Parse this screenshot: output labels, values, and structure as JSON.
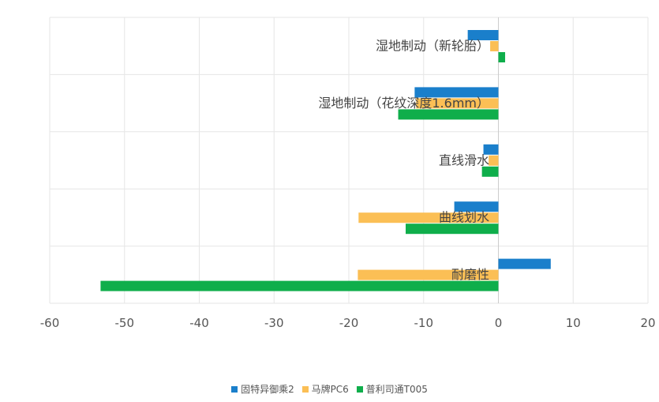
{
  "chart_data": {
    "type": "bar",
    "orientation": "horizontal",
    "categories": [
      "湿地制动（新轮胎）",
      "湿地制动（花纹深度1.6mm）",
      "直线滑水",
      "曲线划水",
      "耐磨性"
    ],
    "series": [
      {
        "name": "固特异御乘2",
        "color": "#1a7fcb",
        "values": [
          -4.1,
          -11.2,
          -2.0,
          -5.9,
          7.0
        ]
      },
      {
        "name": "马牌PC6",
        "color": "#fbbf55",
        "values": [
          -1.1,
          -11.0,
          -1.3,
          -18.7,
          -18.8
        ]
      },
      {
        "name": "普利司通T005",
        "color": "#0fae4b",
        "values": [
          0.9,
          -13.4,
          -2.2,
          -12.4,
          -53.2
        ]
      }
    ],
    "xlim": [
      -60,
      20
    ],
    "xticks": [
      "-60",
      "-50",
      "-40",
      "-30",
      "-20",
      "-10",
      "0",
      "10",
      "20"
    ],
    "grid": true,
    "legend": "bottom"
  }
}
